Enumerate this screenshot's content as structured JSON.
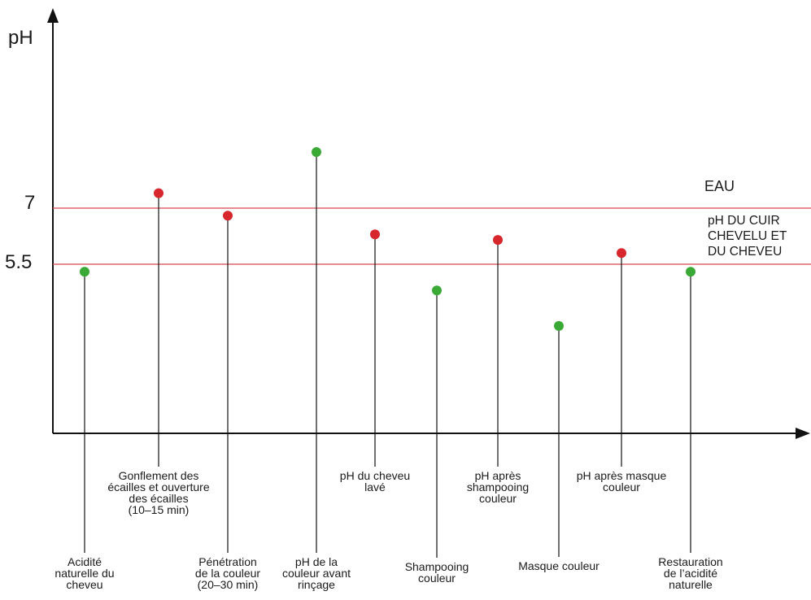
{
  "chart_data": {
    "type": "scatter",
    "ylabel": "pH",
    "xlabel": "",
    "title": "",
    "ylim": [
      2.5,
      13.5
    ],
    "yticks": [
      5.5,
      7
    ],
    "grid": false,
    "colors": {
      "green": "#3aa935",
      "red": "#d7262c",
      "reference": "#d6484d",
      "axis": "#111111"
    },
    "reference_lines": [
      {
        "value": 7,
        "label": "EAU"
      },
      {
        "value": 5.5,
        "label": "pH DU CUIR CHEVELU ET DU CHEVEU"
      }
    ],
    "points": [
      {
        "label": "Acidité naturelle du cheveu",
        "y": 5.3,
        "color": "green",
        "label_position": "bottom"
      },
      {
        "label": "Gonflement des écailles et ouverture des écailles (10–15 min)",
        "y": 7.4,
        "color": "red",
        "label_position": "top"
      },
      {
        "label": "Pénétration de la couleur (20–30 min)",
        "y": 6.8,
        "color": "red",
        "label_position": "bottom"
      },
      {
        "label": "pH de la couleur avant rinçage",
        "y": 8.5,
        "color": "green",
        "label_position": "bottom"
      },
      {
        "label": "pH du cheveu lavé",
        "y": 6.3,
        "color": "red",
        "label_position": "top"
      },
      {
        "label": "Shampooing couleur",
        "y": 4.8,
        "color": "green",
        "label_position": "bottom"
      },
      {
        "label": "pH après shampooing couleur",
        "y": 6.15,
        "color": "red",
        "label_position": "top"
      },
      {
        "label": "Masque couleur",
        "y": 3.85,
        "color": "green",
        "label_position": "bottom"
      },
      {
        "label": "pH après masque couleur",
        "y": 5.8,
        "color": "red",
        "label_position": "top"
      },
      {
        "label": "Restauration de l’acidité naturelle",
        "y": 5.3,
        "color": "green",
        "label_position": "bottom"
      }
    ]
  }
}
